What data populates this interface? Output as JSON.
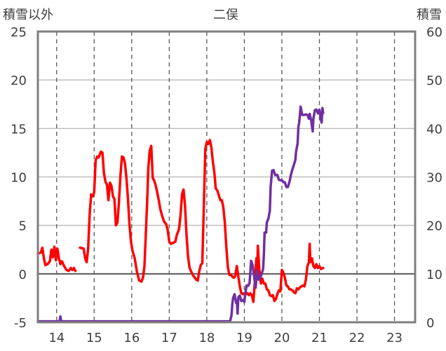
{
  "chart_data": {
    "type": "line",
    "title": "二俣",
    "left_axis_label": "積雪以外",
    "right_axis_label": "積雪",
    "x_ticks": [
      14,
      15,
      16,
      17,
      18,
      19,
      20,
      21,
      22,
      23
    ],
    "xlim": [
      13.5,
      23.55
    ],
    "y_left_ticks": [
      -5,
      0,
      5,
      10,
      15,
      20,
      25
    ],
    "ylim_left": [
      -5,
      25
    ],
    "y_right_ticks": [
      0,
      10,
      20,
      30,
      40,
      50,
      60
    ],
    "ylim_right": [
      0,
      60
    ],
    "grid": {
      "vertical": "dashed",
      "horizontal": "solid"
    },
    "colors": {
      "red_series": "#ff0000",
      "purple_series": "#7030a0",
      "axis": "#7f7f7f",
      "grid": "#bfbfbf"
    },
    "series": [
      {
        "axis": "left",
        "color": "#ff0000",
        "segments": [
          [
            [
              13.5,
              2.1
            ],
            [
              13.58,
              2.2
            ],
            [
              13.62,
              2.7
            ],
            [
              13.66,
              1.6
            ],
            [
              13.7,
              0.9
            ],
            [
              13.76,
              1.0
            ],
            [
              13.82,
              1.3
            ],
            [
              13.86,
              2.5
            ],
            [
              13.9,
              1.7
            ],
            [
              13.94,
              2.8
            ],
            [
              13.98,
              1.4
            ],
            [
              14.02,
              2.6
            ],
            [
              14.06,
              1.6
            ],
            [
              14.1,
              1.0
            ],
            [
              14.14,
              1.3
            ],
            [
              14.2,
              0.8
            ],
            [
              14.26,
              0.4
            ],
            [
              14.32,
              0.3
            ],
            [
              14.38,
              0.6
            ],
            [
              14.42,
              0.4
            ]
          ],
          [
            [
              14.46,
              0.6
            ],
            [
              14.5,
              0.3
            ]
          ],
          [
            [
              14.62,
              2.7
            ],
            [
              14.72,
              2.6
            ],
            [
              14.76,
              1.6
            ],
            [
              14.8,
              1.2
            ],
            [
              14.84,
              2.6
            ],
            [
              14.88,
              6.2
            ],
            [
              14.92,
              8.2
            ],
            [
              14.96,
              8.0
            ],
            [
              15.0,
              8.4
            ],
            [
              15.04,
              11.7
            ],
            [
              15.08,
              12.1
            ],
            [
              15.12,
              12.0
            ],
            [
              15.18,
              12.6
            ],
            [
              15.22,
              12.5
            ],
            [
              15.26,
              10.4
            ],
            [
              15.3,
              9.5
            ],
            [
              15.34,
              9.2
            ],
            [
              15.38,
              7.6
            ],
            [
              15.42,
              9.4
            ],
            [
              15.46,
              9.1
            ],
            [
              15.5,
              8.0
            ],
            [
              15.54,
              7.7
            ],
            [
              15.58,
              5.0
            ],
            [
              15.62,
              5.3
            ],
            [
              15.66,
              7.4
            ],
            [
              15.7,
              10.2
            ],
            [
              15.74,
              12.1
            ],
            [
              15.78,
              12.0
            ],
            [
              15.82,
              11.4
            ],
            [
              15.86,
              9.9
            ],
            [
              15.9,
              7.7
            ],
            [
              15.94,
              5.1
            ],
            [
              15.98,
              3.3
            ],
            [
              16.02,
              2.4
            ],
            [
              16.08,
              1.6
            ],
            [
              16.14,
              0.2
            ],
            [
              16.2,
              -0.7
            ],
            [
              16.26,
              -0.8
            ],
            [
              16.3,
              -0.4
            ],
            [
              16.34,
              0.8
            ],
            [
              16.38,
              4.5
            ],
            [
              16.42,
              8.3
            ],
            [
              16.44,
              10.8
            ],
            [
              16.48,
              12.7
            ],
            [
              16.52,
              13.2
            ],
            [
              16.56,
              9.9
            ],
            [
              16.6,
              9.6
            ],
            [
              16.64,
              9.1
            ],
            [
              16.68,
              8.4
            ],
            [
              16.72,
              7.6
            ],
            [
              16.76,
              6.7
            ],
            [
              16.8,
              6.1
            ],
            [
              16.86,
              5.4
            ],
            [
              16.92,
              5.1
            ],
            [
              16.96,
              4.5
            ],
            [
              17.0,
              3.3
            ],
            [
              17.04,
              3.1
            ],
            [
              17.1,
              3.2
            ],
            [
              17.16,
              3.3
            ],
            [
              17.2,
              4.0
            ],
            [
              17.26,
              4.6
            ],
            [
              17.3,
              6.0
            ],
            [
              17.34,
              8.2
            ],
            [
              17.38,
              8.7
            ],
            [
              17.42,
              7.1
            ],
            [
              17.46,
              4.0
            ],
            [
              17.5,
              1.8
            ],
            [
              17.54,
              0.6
            ],
            [
              17.6,
              0.1
            ],
            [
              17.64,
              -0.2
            ],
            [
              17.68,
              -0.4
            ],
            [
              17.72,
              -0.6
            ],
            [
              17.76,
              -0.7
            ],
            [
              17.8,
              0.3
            ],
            [
              17.84,
              0.9
            ],
            [
              17.88,
              1.1
            ],
            [
              17.92,
              6.8
            ],
            [
              17.96,
              12.9
            ],
            [
              18.0,
              13.6
            ],
            [
              18.04,
              13.4
            ],
            [
              18.08,
              13.8
            ],
            [
              18.12,
              13.1
            ],
            [
              18.16,
              11.6
            ],
            [
              18.2,
              10.5
            ],
            [
              18.24,
              8.8
            ],
            [
              18.28,
              8.6
            ],
            [
              18.32,
              8.1
            ],
            [
              18.36,
              7.6
            ],
            [
              18.4,
              7.6
            ],
            [
              18.44,
              6.9
            ],
            [
              18.48,
              5.3
            ],
            [
              18.52,
              2.8
            ],
            [
              18.56,
              0.7
            ],
            [
              18.6,
              -0.1
            ],
            [
              18.64,
              -0.1
            ],
            [
              18.68,
              -0.3
            ],
            [
              18.72,
              -0.4
            ],
            [
              18.76,
              -0.2
            ],
            [
              18.8,
              0.8
            ],
            [
              18.84,
              -0.3
            ],
            [
              18.88,
              -1.3
            ],
            [
              18.92,
              -2.0
            ],
            [
              18.96,
              -2.1
            ],
            [
              19.0,
              -2.0
            ],
            [
              19.04,
              -2.1
            ],
            [
              19.08,
              -2.0
            ],
            [
              19.12,
              -2.2
            ],
            [
              19.16,
              -2.0
            ],
            [
              19.2,
              -2.2
            ],
            [
              19.24,
              -2.9
            ],
            [
              19.28,
              -0.8
            ],
            [
              19.32,
              1.6
            ],
            [
              19.34,
              -0.1
            ],
            [
              19.36,
              2.9
            ],
            [
              19.4,
              0.4
            ],
            [
              19.44,
              -1.0
            ],
            [
              19.48,
              -0.5
            ],
            [
              19.52,
              -1.0
            ],
            [
              19.56,
              -1.0
            ],
            [
              19.6,
              -1.6
            ],
            [
              19.64,
              -1.7
            ],
            [
              19.68,
              -2.2
            ],
            [
              19.72,
              -2.3
            ],
            [
              19.76,
              -2.2
            ],
            [
              19.8,
              -2.8
            ],
            [
              19.84,
              -2.6
            ],
            [
              19.88,
              -2.1
            ],
            [
              19.92,
              -1.7
            ],
            [
              19.96,
              -1.8
            ],
            [
              20.0,
              0.4
            ],
            [
              20.04,
              0.1
            ],
            [
              20.08,
              -0.4
            ],
            [
              20.12,
              -1.2
            ],
            [
              20.16,
              -1.3
            ],
            [
              20.2,
              -1.6
            ],
            [
              20.24,
              -1.6
            ],
            [
              20.28,
              -1.7
            ],
            [
              20.32,
              -1.9
            ],
            [
              20.36,
              -2.0
            ],
            [
              20.4,
              -1.5
            ],
            [
              20.44,
              -1.6
            ],
            [
              20.48,
              -1.4
            ],
            [
              20.52,
              -1.3
            ],
            [
              20.56,
              -1.2
            ],
            [
              20.6,
              -1.3
            ],
            [
              20.64,
              -0.6
            ],
            [
              20.68,
              0.8
            ],
            [
              20.72,
              1.2
            ],
            [
              20.74,
              3.1
            ],
            [
              20.76,
              1.2
            ],
            [
              20.8,
              1.6
            ],
            [
              20.84,
              0.8
            ],
            [
              20.88,
              0.6
            ],
            [
              20.92,
              1.0
            ],
            [
              20.96,
              0.6
            ],
            [
              21.0,
              0.8
            ],
            [
              21.04,
              0.5
            ],
            [
              21.1,
              0.6
            ]
          ]
        ]
      },
      {
        "axis": "right",
        "color": "#7030a0",
        "points": [
          [
            13.5,
            0.2
          ],
          [
            14.0,
            0.2
          ],
          [
            14.08,
            0.2
          ],
          [
            14.1,
            1.2
          ],
          [
            14.12,
            0.2
          ],
          [
            15.0,
            0.2
          ],
          [
            16.0,
            0.2
          ],
          [
            17.0,
            0.2
          ],
          [
            18.0,
            0.2
          ],
          [
            18.62,
            0.2
          ],
          [
            18.66,
            1.5
          ],
          [
            18.68,
            3.8
          ],
          [
            18.7,
            5.0
          ],
          [
            18.74,
            5.8
          ],
          [
            18.78,
            4.0
          ],
          [
            18.8,
            4.5
          ],
          [
            18.82,
            1.8
          ],
          [
            18.84,
            5.2
          ],
          [
            18.88,
            5.5
          ],
          [
            18.92,
            4.4
          ],
          [
            18.96,
            4.6
          ],
          [
            19.0,
            4.2
          ],
          [
            19.02,
            5.5
          ],
          [
            19.06,
            7.6
          ],
          [
            19.1,
            7.5
          ],
          [
            19.14,
            8.1
          ],
          [
            19.16,
            10.4
          ],
          [
            19.18,
            12.7
          ],
          [
            19.22,
            11.8
          ],
          [
            19.26,
            9.5
          ],
          [
            19.3,
            7.1
          ],
          [
            19.34,
            10.6
          ],
          [
            19.38,
            8.8
          ],
          [
            19.42,
            9.0
          ],
          [
            19.46,
            10.0
          ],
          [
            19.5,
            11.0
          ],
          [
            19.52,
            14.0
          ],
          [
            19.54,
            18.5
          ],
          [
            19.58,
            18.5
          ],
          [
            19.6,
            20.6
          ],
          [
            19.64,
            21.4
          ],
          [
            19.68,
            23.0
          ],
          [
            19.7,
            27.9
          ],
          [
            19.74,
            31.3
          ],
          [
            19.78,
            31.4
          ],
          [
            19.82,
            30.4
          ],
          [
            19.88,
            30.4
          ],
          [
            19.92,
            29.4
          ],
          [
            19.96,
            29.3
          ],
          [
            20.0,
            29.3
          ],
          [
            20.04,
            28.9
          ],
          [
            20.08,
            28.9
          ],
          [
            20.12,
            27.9
          ],
          [
            20.16,
            27.9
          ],
          [
            20.2,
            28.9
          ],
          [
            20.24,
            30.4
          ],
          [
            20.28,
            31.5
          ],
          [
            20.32,
            32.5
          ],
          [
            20.36,
            33.5
          ],
          [
            20.38,
            35.4
          ],
          [
            20.42,
            36.8
          ],
          [
            20.44,
            40.4
          ],
          [
            20.46,
            41.1
          ],
          [
            20.5,
            44.5
          ],
          [
            20.54,
            42.8
          ],
          [
            20.6,
            42.8
          ],
          [
            20.64,
            42.9
          ],
          [
            20.68,
            42.8
          ],
          [
            20.72,
            42.0
          ],
          [
            20.74,
            43.0
          ],
          [
            20.78,
            41.7
          ],
          [
            20.82,
            39.4
          ],
          [
            20.84,
            42.0
          ],
          [
            20.88,
            43.8
          ],
          [
            20.92,
            43.9
          ],
          [
            20.96,
            43.1
          ],
          [
            21.0,
            43.9
          ],
          [
            21.04,
            41.9
          ],
          [
            21.06,
            41.2
          ],
          [
            21.08,
            44.2
          ],
          [
            21.1,
            43.2
          ]
        ]
      }
    ]
  }
}
